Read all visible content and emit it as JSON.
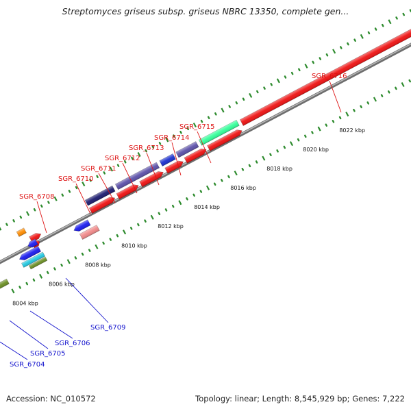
{
  "title": "Streptomyces griseus subsp. griseus NBRC 13350, complete gen...",
  "accession": "Accession: NC_010572",
  "topology": "Topology: linear; Length: 8,545,929 bp; Genes: 7,222",
  "colors": {
    "backbone": "#8a8a8a",
    "tick": "#2e8b2e",
    "label_forward": "#dd1111",
    "label_reverse": "#1111cc"
  },
  "ticks": [
    {
      "label": "8004 kbp"
    },
    {
      "label": "8006 kbp"
    },
    {
      "label": "8008 kbp"
    },
    {
      "label": "8010 kbp"
    },
    {
      "label": "8012 kbp"
    },
    {
      "label": "8014 kbp"
    },
    {
      "label": "8016 kbp"
    },
    {
      "label": "8018 kbp"
    },
    {
      "label": "8020 kbp"
    },
    {
      "label": "8022 kbp"
    }
  ],
  "gene_labels": [
    {
      "text": "SGR_6716",
      "strand": "forward"
    },
    {
      "text": "SGR_6715",
      "strand": "forward"
    },
    {
      "text": "SGR_6714",
      "strand": "forward"
    },
    {
      "text": "SGR_6713",
      "strand": "forward"
    },
    {
      "text": "SGR_6712",
      "strand": "forward"
    },
    {
      "text": "SGR_6711",
      "strand": "forward"
    },
    {
      "text": "SGR_6710",
      "strand": "forward"
    },
    {
      "text": "SGR_6708",
      "strand": "forward"
    },
    {
      "text": "SGR_6709",
      "strand": "reverse"
    },
    {
      "text": "SGR_6706",
      "strand": "reverse"
    },
    {
      "text": "SGR_6705",
      "strand": "reverse"
    },
    {
      "text": "SGR_6704",
      "strand": "reverse"
    }
  ]
}
